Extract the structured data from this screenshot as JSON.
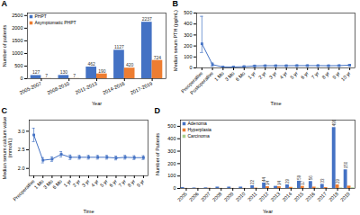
{
  "chart_data": [
    {
      "type": "bar",
      "title": "A",
      "xlabel": "Year",
      "ylabel": "Number of patients",
      "categories": [
        "2005-2007",
        "2008-2010",
        "2011-2013",
        "2014-2016",
        "2017-2019"
      ],
      "series": [
        {
          "name": "PHPT",
          "color": "#4472C4",
          "values": [
            127,
            130,
            462,
            1127,
            2237
          ]
        },
        {
          "name": "Asymptomatic PHPT",
          "color": "#ED7D31",
          "values": [
            7,
            7,
            190,
            420,
            724
          ]
        }
      ],
      "ylim": [
        0,
        2600
      ],
      "yticks": [
        0,
        500,
        1000,
        1500,
        2000,
        2500
      ],
      "data_labels": true,
      "legend": "upper left"
    },
    {
      "type": "line",
      "title": "B",
      "xlabel": "Time",
      "ylabel": "Median serum PTH (pg/mL)",
      "categories": [
        "Preoperative",
        "Postoperative",
        "1 Mo",
        "3 Mo",
        "6 Mo",
        "1 yr",
        "2 yr",
        "3 yr",
        "4 yr",
        "5 yr",
        "6 yr",
        "7 yr",
        "8 yr",
        "9 yr",
        "10 yr"
      ],
      "values": [
        220,
        30,
        8,
        8,
        12,
        18,
        20,
        20,
        20,
        21,
        21,
        21,
        20,
        21,
        25
      ],
      "error_minus": [
        80,
        15,
        5,
        5,
        5,
        5,
        5,
        5,
        5,
        5,
        5,
        5,
        5,
        5,
        5
      ],
      "error_plus": [
        250,
        15,
        5,
        5,
        5,
        5,
        5,
        5,
        5,
        5,
        5,
        5,
        5,
        5,
        5
      ],
      "color": "#4472C4",
      "marker": "square",
      "ylim": [
        0,
        500
      ],
      "yticks": [
        0,
        100,
        200,
        300,
        400,
        500
      ]
    },
    {
      "type": "line",
      "title": "C",
      "xlabel": "Time",
      "ylabel": "Median serum calcium value\n(mmol/L)",
      "categories": [
        "Preoperative",
        "1 Mo",
        "3 Mo",
        "6 Mo",
        "1 yr",
        "2 yr",
        "3 yr",
        "4 yr",
        "5 yr",
        "6 yr",
        "7 yr",
        "8 yr",
        "9 yr"
      ],
      "values": [
        2.9,
        2.22,
        2.25,
        2.38,
        2.3,
        2.3,
        2.3,
        2.3,
        2.3,
        2.28,
        2.3,
        2.29,
        2.29
      ],
      "error": [
        0.18,
        0.07,
        0.06,
        0.07,
        0.06,
        0.05,
        0.05,
        0.05,
        0.05,
        0.05,
        0.05,
        0.05,
        0.05
      ],
      "color": "#4472C4",
      "marker": "square",
      "ylim": [
        1.8,
        3.3
      ],
      "yticks": [
        {
          "value": 2,
          "label": "2.0"
        },
        2.5,
        {
          "value": 3,
          "label": "3.0"
        }
      ]
    },
    {
      "type": "bar",
      "title": "D",
      "xlabel": "Year",
      "ylabel": "Number of Patients",
      "categories": [
        "2005",
        "2006",
        "2007",
        "2008",
        "2009",
        "2010",
        "2011",
        "2012",
        "2013",
        "2014",
        "2015",
        "2016",
        "2017",
        "2018",
        "2019"
      ],
      "series": [
        {
          "name": "Adenoma",
          "color": "#4472C4",
          "values": [
            8,
            4,
            5,
            11,
            11,
            11,
            22,
            44,
            17,
            29,
            59,
            56,
            33,
            490,
            150
          ],
          "value_labels": [
            null,
            null,
            null,
            null,
            null,
            null,
            "22",
            "44",
            null,
            "29",
            "59",
            "56",
            "33",
            "490",
            "150"
          ]
        },
        {
          "name": "Hyperplasia",
          "color": "#ED7D31",
          "values": [
            1,
            1,
            2,
            1,
            1,
            1,
            3,
            14,
            14,
            9,
            17,
            11,
            7,
            29,
            19
          ],
          "value_labels": [
            null,
            null,
            null,
            null,
            null,
            null,
            null,
            "14",
            "14",
            null,
            "17",
            null,
            null,
            "29",
            null
          ]
        },
        {
          "name": "Carcinoma",
          "color": "#A9D18E",
          "values": [
            0,
            0,
            0,
            0,
            0,
            0,
            1,
            1,
            0,
            2,
            1,
            3,
            1,
            4,
            5
          ]
        }
      ],
      "ylim": [
        0,
        550
      ],
      "yticks": [
        0,
        100,
        200,
        300,
        400,
        500
      ],
      "legend": "upper left"
    }
  ]
}
